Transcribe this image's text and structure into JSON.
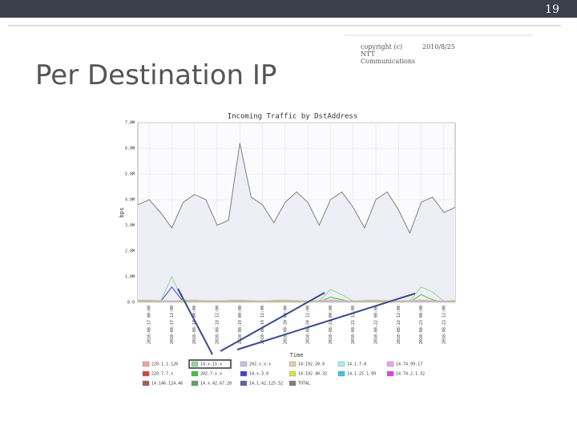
{
  "slide": {
    "number": "19",
    "copyright": "copyright (c) NTT Communications",
    "date": "2010/8/25",
    "title": "Per Destination IP"
  },
  "chart_data": {
    "type": "line",
    "title": "Incoming Traffic by DstAddress",
    "y_label": "bps",
    "x_label": "Time",
    "categories": [
      null,
      "2010-08-17 00:00",
      null,
      "2010-08-17 12:00",
      null,
      "2010-08-18 00:00",
      null,
      "2010-08-18 12:00",
      null,
      "2010-08-19 00:00",
      null,
      "2010-08-19 12:00",
      null,
      "2010-08-20 00:00",
      null,
      "2010-08-20 12:00",
      null,
      "2010-08-21 00:00",
      null,
      "2010-08-21 12:00",
      null,
      "2010-08-22 00:00",
      null,
      "2010-08-22 12:00",
      null,
      "2010-08-23 00:00",
      null,
      "2010-08-23 12:00",
      null
    ],
    "ylim": [
      0,
      7
    ],
    "yticks": [
      {
        "value": 0,
        "label": "0.0"
      },
      {
        "value": 1,
        "label": "1.0M"
      },
      {
        "value": 2,
        "label": "2.0M"
      },
      {
        "value": 3,
        "label": "3.0M"
      },
      {
        "value": 4,
        "label": "4.0M"
      },
      {
        "value": 5,
        "label": "5.0M"
      },
      {
        "value": 6,
        "label": "6.0M"
      },
      {
        "value": 7,
        "label": "7.0M"
      }
    ],
    "grid": true,
    "series": [
      {
        "name": "220.1.1.120",
        "color": "#f4a0a0",
        "values": [
          0.05,
          0.06,
          0.05,
          0.04,
          0.05,
          0.06,
          0.05,
          0.04,
          0.05,
          0.06,
          0.05,
          0.04,
          0.05,
          0.06,
          0.05,
          0.04,
          0.05,
          0.06,
          0.05,
          0.04,
          0.05,
          0.06,
          0.05,
          0.04,
          0.05,
          0.06,
          0.05,
          0.04,
          0.05
        ]
      },
      {
        "name": "14.x.15.x",
        "color": "#90d890",
        "values": [
          0.03,
          0.03,
          0.03,
          1.0,
          0.03,
          0.03,
          0.03,
          0.03,
          0.03,
          0.03,
          0.03,
          0.03,
          0.03,
          0.03,
          0.03,
          0.03,
          0.05,
          0.5,
          0.3,
          0.05,
          0.03,
          0.03,
          0.03,
          0.03,
          0.05,
          0.6,
          0.4,
          0.05,
          0.03
        ]
      },
      {
        "name": "202.x.x.x",
        "color": "#c0c0f0",
        "values": [
          0.04,
          0.04,
          0.04,
          0.04,
          0.04,
          0.04,
          0.04,
          0.04,
          0.04,
          0.04,
          0.04,
          0.04,
          0.04,
          0.04,
          0.04,
          0.04,
          0.04,
          0.04,
          0.04,
          0.04,
          0.04,
          0.04,
          0.04,
          0.04,
          0.04,
          0.04,
          0.04,
          0.04,
          0.04
        ]
      },
      {
        "name": "14.192.20.0",
        "color": "#e0d0a0",
        "values": [
          0.08,
          0.09,
          0.07,
          0.06,
          0.08,
          0.09,
          0.07,
          0.06,
          0.08,
          0.09,
          0.07,
          0.06,
          0.08,
          0.09,
          0.07,
          0.06,
          0.08,
          0.09,
          0.07,
          0.06,
          0.08,
          0.09,
          0.07,
          0.06,
          0.08,
          0.09,
          0.07,
          0.06,
          0.08
        ]
      },
      {
        "name": "14.1.7.8",
        "color": "#a0f0f0",
        "values": [
          0.02,
          0.02,
          0.02,
          0.02,
          0.02,
          0.02,
          0.02,
          0.02,
          0.02,
          0.02,
          0.02,
          0.02,
          0.02,
          0.02,
          0.02,
          0.02,
          0.02,
          0.02,
          0.02,
          0.02,
          0.02,
          0.02,
          0.02,
          0.02,
          0.02,
          0.02,
          0.02,
          0.02,
          0.02
        ]
      },
      {
        "name": "14.74.99.17",
        "color": "#f0a0f0",
        "values": [
          0.03,
          0.03,
          0.03,
          0.03,
          0.03,
          0.03,
          0.03,
          0.03,
          0.03,
          0.03,
          0.03,
          0.03,
          0.03,
          0.03,
          0.03,
          0.03,
          0.03,
          0.03,
          0.03,
          0.03,
          0.03,
          0.03,
          0.03,
          0.03,
          0.03,
          0.03,
          0.03,
          0.03,
          0.03
        ]
      },
      {
        "name": "220.7.7.x",
        "color": "#e04040",
        "values": [
          0.06,
          0.07,
          0.05,
          0.04,
          0.06,
          0.07,
          0.05,
          0.04,
          0.06,
          0.07,
          0.05,
          0.04,
          0.06,
          0.07,
          0.05,
          0.04,
          0.06,
          0.07,
          0.05,
          0.04,
          0.06,
          0.07,
          0.05,
          0.04,
          0.06,
          0.07,
          0.05,
          0.04,
          0.06
        ]
      },
      {
        "name": "202.7.x.x",
        "color": "#40c040",
        "values": [
          0.02,
          0.02,
          0.02,
          0.02,
          0.02,
          0.02,
          0.02,
          0.02,
          0.02,
          0.02,
          0.02,
          0.02,
          0.02,
          0.02,
          0.02,
          0.02,
          0.02,
          0.2,
          0.1,
          0.02,
          0.02,
          0.02,
          0.02,
          0.02,
          0.02,
          0.3,
          0.1,
          0.02,
          0.02
        ]
      },
      {
        "name": "14.x.3.0",
        "color": "#4040e0",
        "values": [
          0.02,
          0.02,
          0.02,
          0.6,
          0.02,
          0.02,
          0.02,
          0.02,
          0.02,
          0.02,
          0.02,
          0.02,
          0.02,
          0.02,
          0.02,
          0.02,
          0.02,
          0.02,
          0.02,
          0.02,
          0.02,
          0.02,
          0.02,
          0.02,
          0.02,
          0.02,
          0.02,
          0.02,
          0.02
        ]
      },
      {
        "name": "14.192.40.32",
        "color": "#e0e040",
        "values": [
          0.03,
          0.03,
          0.03,
          0.03,
          0.03,
          0.03,
          0.03,
          0.03,
          0.03,
          0.03,
          0.03,
          0.03,
          0.03,
          0.03,
          0.03,
          0.03,
          0.03,
          0.03,
          0.03,
          0.03,
          0.03,
          0.03,
          0.03,
          0.03,
          0.03,
          0.03,
          0.03,
          0.03,
          0.03
        ]
      },
      {
        "name": "14.1.25.1.99",
        "color": "#40c0e0",
        "values": [
          0.02,
          0.02,
          0.02,
          0.02,
          0.02,
          0.02,
          0.02,
          0.02,
          0.02,
          0.02,
          0.02,
          0.02,
          0.02,
          0.02,
          0.02,
          0.02,
          0.02,
          0.02,
          0.02,
          0.02,
          0.02,
          0.02,
          0.02,
          0.02,
          0.02,
          0.02,
          0.02,
          0.02,
          0.02
        ]
      },
      {
        "name": "14.74.2.1.32",
        "color": "#e040e0",
        "values": [
          0.02,
          0.02,
          0.02,
          0.02,
          0.02,
          0.02,
          0.02,
          0.02,
          0.02,
          0.02,
          0.02,
          0.02,
          0.02,
          0.02,
          0.02,
          0.02,
          0.02,
          0.02,
          0.02,
          0.02,
          0.02,
          0.02,
          0.02,
          0.02,
          0.02,
          0.02,
          0.02,
          0.02,
          0.02
        ]
      },
      {
        "name": "14.146.124.46",
        "color": "#a06060",
        "values": [
          0.04,
          0.05,
          0.04,
          0.03,
          0.04,
          0.05,
          0.04,
          0.03,
          0.04,
          0.05,
          0.04,
          0.03,
          0.04,
          0.05,
          0.04,
          0.03,
          0.04,
          0.05,
          0.04,
          0.03,
          0.04,
          0.05,
          0.04,
          0.03,
          0.04,
          0.05,
          0.04,
          0.03,
          0.04
        ]
      },
      {
        "name": "14.x.42.67.20",
        "color": "#60a060",
        "values": [
          0.02,
          0.02,
          0.02,
          0.02,
          0.02,
          0.02,
          0.02,
          0.02,
          0.02,
          0.02,
          0.02,
          0.02,
          0.02,
          0.02,
          0.02,
          0.02,
          0.02,
          0.02,
          0.02,
          0.02,
          0.02,
          0.02,
          0.02,
          0.02,
          0.02,
          0.02,
          0.02,
          0.02,
          0.02
        ]
      },
      {
        "name": "14.1.42.125.52",
        "color": "#6060a0",
        "values": [
          0.02,
          0.02,
          0.02,
          0.02,
          0.02,
          0.02,
          0.02,
          0.02,
          0.02,
          0.02,
          0.02,
          0.02,
          0.02,
          0.02,
          0.02,
          0.02,
          0.02,
          0.02,
          0.02,
          0.02,
          0.02,
          0.02,
          0.02,
          0.02,
          0.02,
          0.02,
          0.02,
          0.02,
          0.02
        ]
      },
      {
        "name": "TOTAL",
        "color": "#808080",
        "values": [
          3.8,
          4.0,
          3.5,
          2.9,
          3.9,
          4.2,
          4.0,
          3.0,
          3.2,
          6.2,
          4.1,
          3.8,
          3.1,
          3.9,
          4.3,
          3.9,
          3.0,
          4.0,
          4.3,
          3.7,
          2.9,
          4.0,
          4.3,
          3.6,
          2.7,
          3.9,
          4.1,
          3.5,
          3.7
        ]
      }
    ]
  }
}
